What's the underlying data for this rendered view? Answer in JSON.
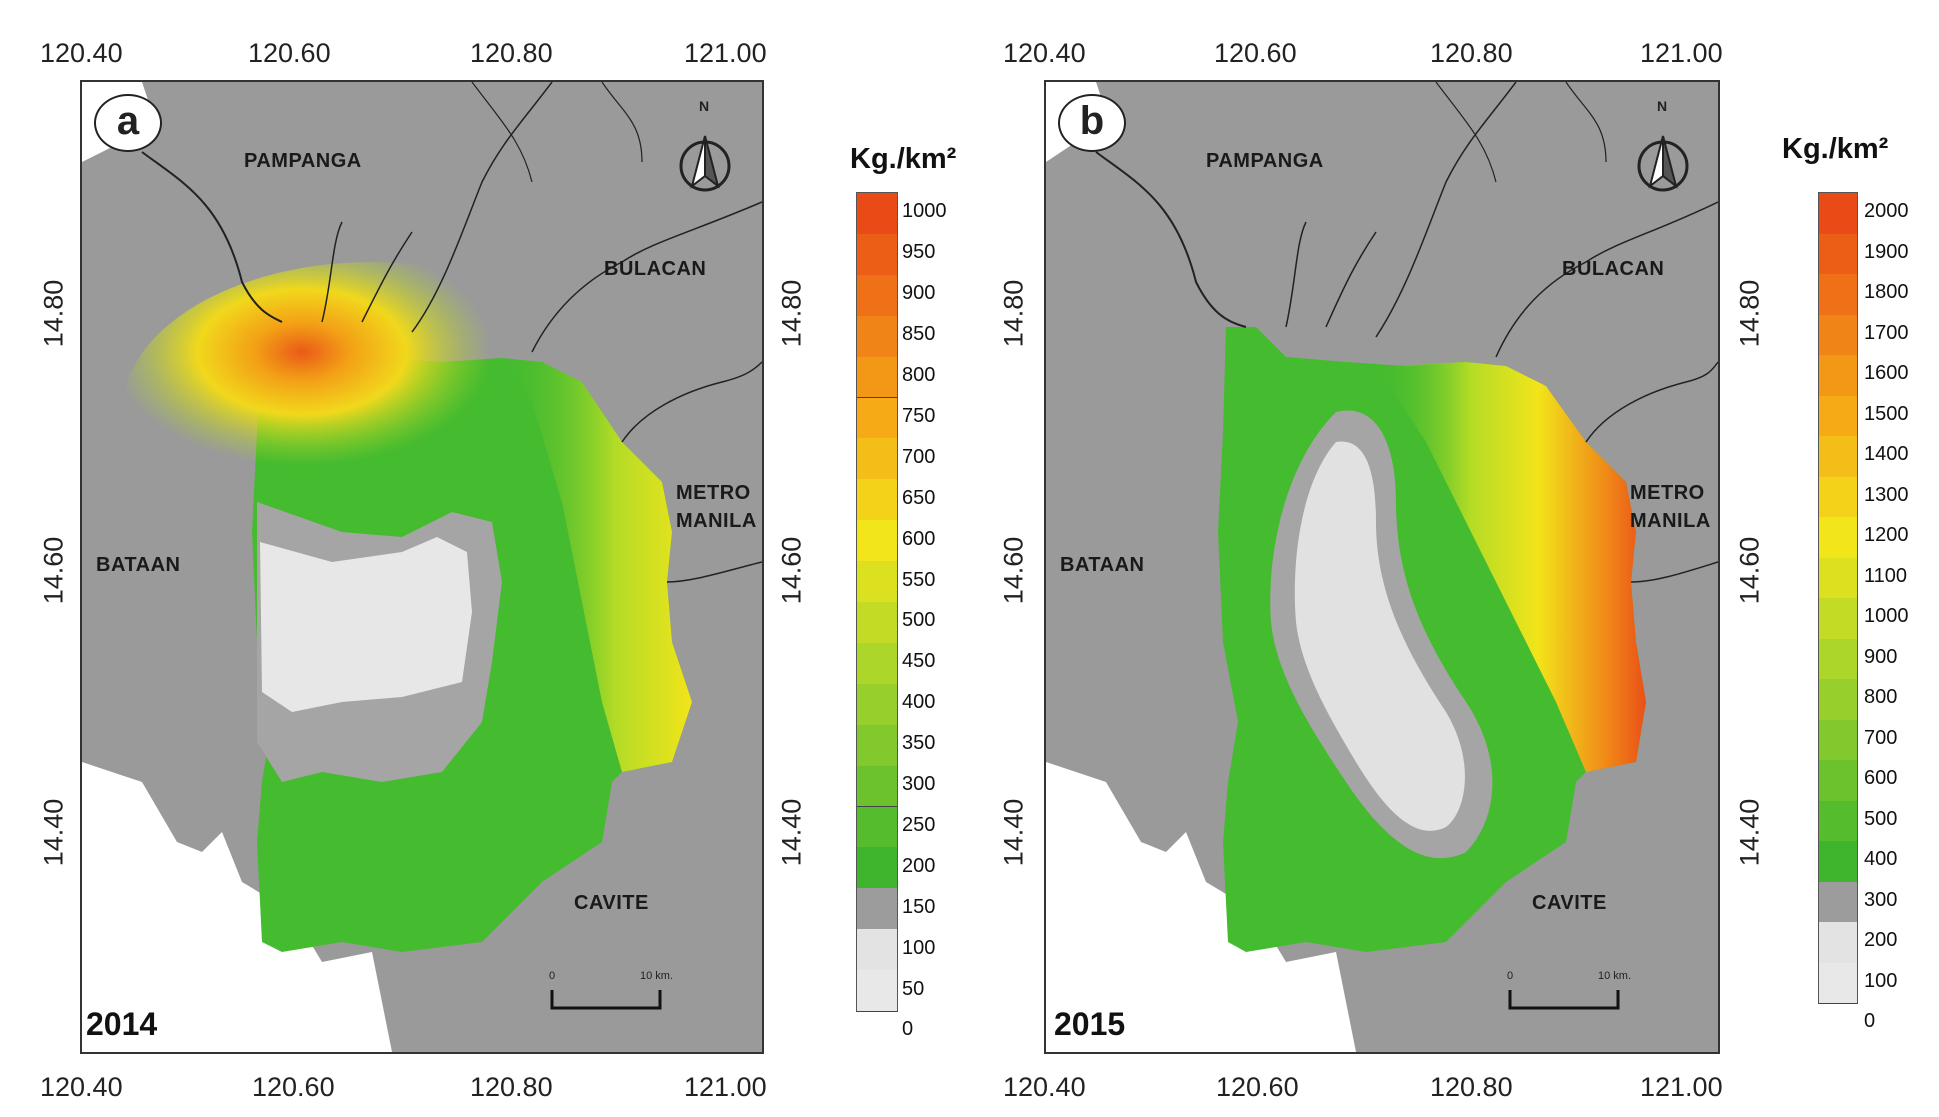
{
  "panels": [
    {
      "id_label": "a",
      "year": "2014",
      "top_lon_labels": [
        "120.40",
        "120.60",
        "120.80",
        "121.00"
      ],
      "bottom_lon_labels": [
        "120.40",
        "120.60",
        "120.80",
        "121.00"
      ],
      "left_lat_labels": [
        "14.80",
        "14.60",
        "14.40"
      ],
      "right_lat_labels": [
        "14.80",
        "14.60",
        "14.40"
      ],
      "places": {
        "pampanga": "PAMPANGA",
        "bulacan": "BULACAN",
        "bataan": "BATAAN",
        "metro_manila_1": "METRO",
        "metro_manila_2": "MANILA",
        "cavite": "CAVITE"
      },
      "north_label": "N",
      "scale": {
        "start": "0",
        "end": "10 km."
      },
      "legend": {
        "title": "Kg./km²",
        "labels": [
          "1000",
          "950",
          "900",
          "850",
          "800",
          "750",
          "700",
          "650",
          "600",
          "550",
          "500",
          "450",
          "400",
          "350",
          "300",
          "250",
          "200",
          "150",
          "100",
          "50",
          "0"
        ]
      }
    },
    {
      "id_label": "b",
      "year": "2015",
      "top_lon_labels": [
        "120.40",
        "120.60",
        "120.80",
        "121.00"
      ],
      "bottom_lon_labels": [
        "120.40",
        "120.60",
        "120.80",
        "121.00"
      ],
      "left_lat_labels": [
        "14.80",
        "14.60",
        "14.40"
      ],
      "right_lat_labels": [
        "14.80",
        "14.60",
        "14.40"
      ],
      "places": {
        "pampanga": "PAMPANGA",
        "bulacan": "BULACAN",
        "bataan": "BATAAN",
        "metro_manila_1": "METRO",
        "metro_manila_2": "MANILA",
        "cavite": "CAVITE"
      },
      "north_label": "N",
      "scale": {
        "start": "0",
        "end": "10 km."
      },
      "legend": {
        "title": "Kg./km²",
        "labels": [
          "2000",
          "1900",
          "1800",
          "1700",
          "1600",
          "1500",
          "1400",
          "1300",
          "1200",
          "1100",
          "1000",
          "900",
          "800",
          "700",
          "600",
          "500",
          "400",
          "300",
          "200",
          "100",
          "0"
        ]
      }
    }
  ],
  "colors": {
    "land": "#9a9a9a",
    "water_white": "#ffffff",
    "low_gray": "#a5a5a5",
    "very_low": "#e6e6e6",
    "green": "#45bb2f",
    "yellow": "#f0e81a",
    "orange": "#f07c16",
    "red_orange": "#ea4f16"
  }
}
